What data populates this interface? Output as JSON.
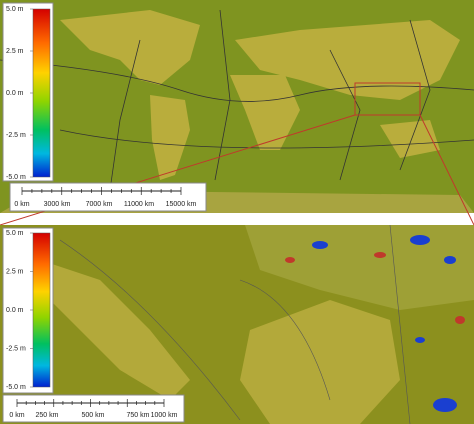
{
  "overview": {
    "colorbar_labels": [
      "5.0 m",
      "2.5 m",
      "0.0 m",
      "-2.5 m",
      "-5.0 m"
    ],
    "scale_labels": [
      "0 km",
      "3000 km",
      "7000 km",
      "11000 km",
      "15000 km"
    ]
  },
  "detail": {
    "colorbar_labels": [
      "5.0 m",
      "2.5 m",
      "0.0 m",
      "-2.5 m",
      "-5.0 m"
    ],
    "scale_labels": [
      "0 km",
      "250 km",
      "500 km",
      "750 km",
      "1000 km"
    ]
  }
}
